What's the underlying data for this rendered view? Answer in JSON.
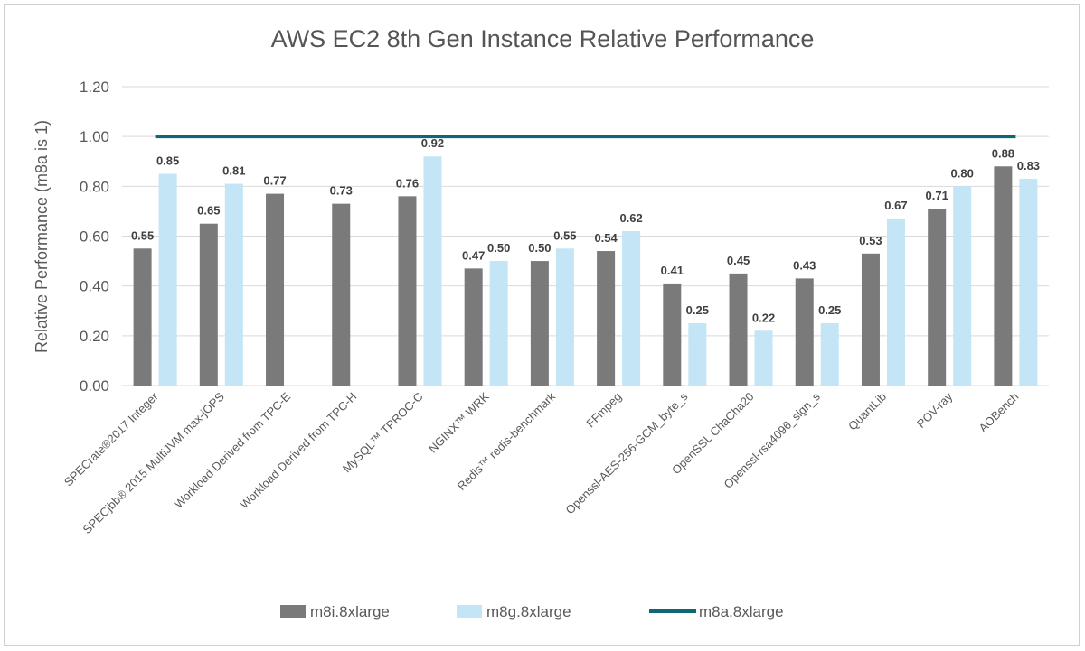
{
  "chart_data": {
    "type": "bar",
    "title": "AWS EC2 8th Gen Instance Relative Performance",
    "xlabel": "",
    "ylabel": "Relative Performance (m8a is 1)",
    "ylim": [
      0,
      1.2
    ],
    "yticks": [
      "0.00",
      "0.20",
      "0.40",
      "0.60",
      "0.80",
      "1.00",
      "1.20"
    ],
    "grid": true,
    "legend_position": "bottom",
    "categories": [
      "SPECrate®2017 Integer",
      "SPECjbb® 2015 MultiJVM max-jOPS",
      "Workload Derived from TPC-E",
      "Workload Derived from TPC-H",
      "MySQL™ TPROC-C",
      "NGINX™ WRK",
      "Redis™ redis-benchmark",
      "FFmpeg",
      "Openssl-AES-256-GCM_byte_s",
      "OpenSSL ChaCha20",
      "Openssl-rsa4096_sign_s",
      "QuantLib",
      "POV-ray",
      "AOBench"
    ],
    "series": [
      {
        "name": "m8i.8xlarge",
        "type": "bar",
        "color": "#7a7a7a",
        "values": [
          0.55,
          0.65,
          0.77,
          0.73,
          0.76,
          0.47,
          0.5,
          0.54,
          0.41,
          0.45,
          0.43,
          0.53,
          0.71,
          0.88
        ]
      },
      {
        "name": "m8g.8xlarge",
        "type": "bar",
        "color": "#c3e5f5",
        "values": [
          0.85,
          0.81,
          null,
          null,
          0.92,
          0.5,
          0.55,
          0.62,
          0.25,
          0.22,
          0.25,
          0.67,
          0.8,
          0.83
        ]
      },
      {
        "name": "m8a.8xlarge",
        "type": "line",
        "color": "#0f6674",
        "values": [
          1,
          1,
          1,
          1,
          1,
          1,
          1,
          1,
          1,
          1,
          1,
          1,
          1,
          1
        ]
      }
    ]
  }
}
